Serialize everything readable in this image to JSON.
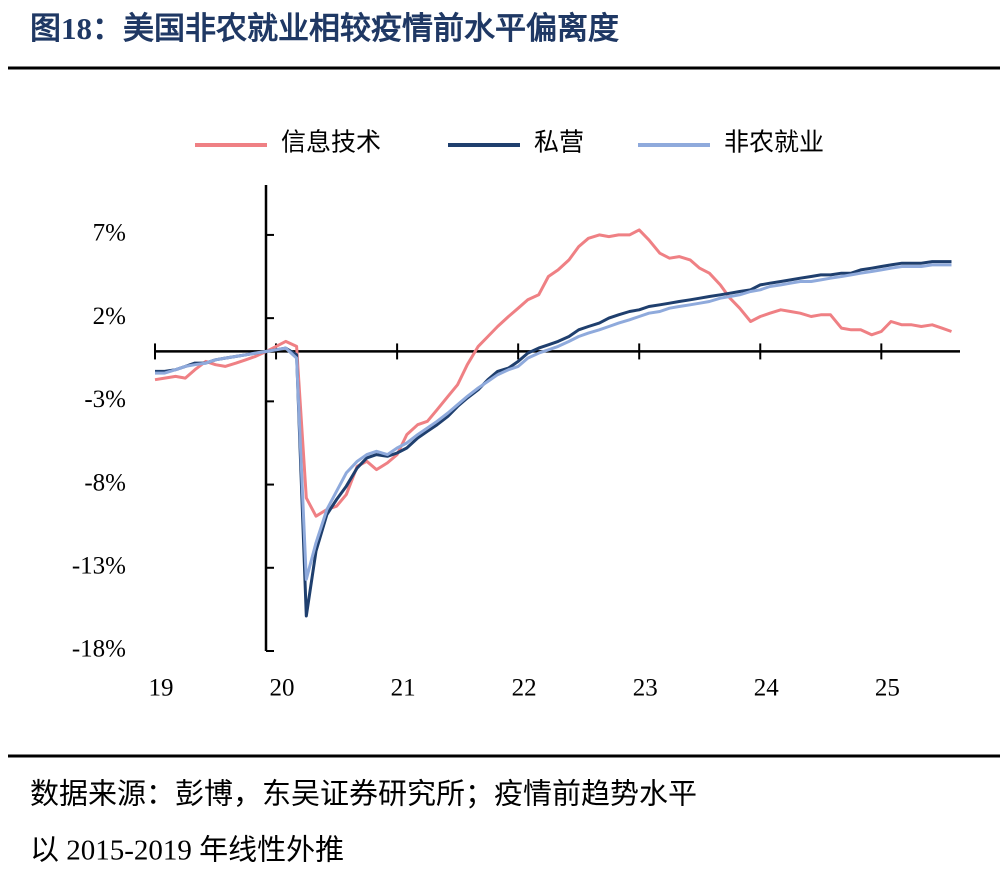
{
  "title": "图18：美国非农就业相较疫情前水平偏离度",
  "source": [
    "数据来源：彭博，东吴证券研究所；疫情前趋势水平",
    "以 2015-2019 年线性外推"
  ],
  "chart_data": {
    "type": "line",
    "x": [
      19.0,
      19.08,
      19.17,
      19.25,
      19.33,
      19.42,
      19.5,
      19.58,
      19.67,
      19.75,
      19.83,
      19.92,
      20.0,
      20.08,
      20.17,
      20.25,
      20.33,
      20.42,
      20.5,
      20.58,
      20.67,
      20.75,
      20.83,
      20.92,
      21.0,
      21.08,
      21.17,
      21.25,
      21.33,
      21.42,
      21.5,
      21.58,
      21.67,
      21.75,
      21.83,
      21.92,
      22.0,
      22.08,
      22.17,
      22.25,
      22.33,
      22.42,
      22.5,
      22.58,
      22.67,
      22.75,
      22.83,
      22.92,
      23.0,
      23.08,
      23.17,
      23.25,
      23.33,
      23.42,
      23.5,
      23.58,
      23.67,
      23.75,
      23.83,
      23.92,
      24.0,
      24.08,
      24.17,
      24.25,
      24.33,
      24.42,
      24.5,
      24.58,
      24.67,
      24.75,
      24.83,
      24.92,
      25.0,
      25.08,
      25.17,
      25.25,
      25.33,
      25.42,
      25.5,
      25.58
    ],
    "series": [
      {
        "name": "信息技术",
        "color": "#ef8084",
        "values": [
          -1.7,
          -1.6,
          -1.5,
          -1.6,
          -1.1,
          -0.6,
          -0.8,
          -0.9,
          -0.7,
          -0.5,
          -0.3,
          0,
          0.3,
          0.6,
          0.3,
          -8.8,
          -9.9,
          -9.5,
          -9.3,
          -8.6,
          -6.9,
          -6.6,
          -7.1,
          -6.7,
          -6.2,
          -5.0,
          -4.4,
          -4.2,
          -3.5,
          -2.7,
          -2.0,
          -0.8,
          0.3,
          0.9,
          1.5,
          2.1,
          2.6,
          3.1,
          3.4,
          4.5,
          4.9,
          5.5,
          6.3,
          6.8,
          7.0,
          6.9,
          7.0,
          7.0,
          7.3,
          6.7,
          5.9,
          5.6,
          5.7,
          5.5,
          5.0,
          4.7,
          4.0,
          3.2,
          2.6,
          1.8,
          2.1,
          2.3,
          2.5,
          2.4,
          2.3,
          2.1,
          2.2,
          2.2,
          1.4,
          1.3,
          1.3,
          1.0,
          1.2,
          1.8,
          1.6,
          1.6,
          1.5,
          1.6,
          1.4,
          1.2
        ]
      },
      {
        "name": "私营",
        "color": "#1f3f6e",
        "values": [
          -1.2,
          -1.2,
          -1.1,
          -0.9,
          -0.7,
          -0.7,
          -0.5,
          -0.4,
          -0.3,
          -0.2,
          -0.1,
          0,
          0.1,
          0.2,
          -0.2,
          -15.9,
          -12.0,
          -9.8,
          -8.9,
          -8.1,
          -7.0,
          -6.4,
          -6.2,
          -6.3,
          -6.1,
          -5.8,
          -5.2,
          -4.8,
          -4.4,
          -3.9,
          -3.3,
          -2.8,
          -2.3,
          -1.7,
          -1.2,
          -1.0,
          -0.6,
          -0.1,
          0.2,
          0.4,
          0.6,
          0.9,
          1.3,
          1.5,
          1.7,
          2.0,
          2.2,
          2.4,
          2.5,
          2.7,
          2.8,
          2.9,
          3.0,
          3.1,
          3.2,
          3.3,
          3.4,
          3.5,
          3.6,
          3.7,
          4.0,
          4.1,
          4.2,
          4.3,
          4.4,
          4.5,
          4.6,
          4.6,
          4.7,
          4.7,
          4.9,
          5.0,
          5.1,
          5.2,
          5.3,
          5.3,
          5.3,
          5.4,
          5.4,
          5.4
        ]
      },
      {
        "name": "非农就业",
        "color": "#8faadc",
        "values": [
          -1.3,
          -1.3,
          -1.1,
          -0.9,
          -0.8,
          -0.7,
          -0.5,
          -0.4,
          -0.3,
          -0.2,
          -0.1,
          0,
          0.1,
          0.2,
          -0.4,
          -13.7,
          -11.5,
          -9.5,
          -8.4,
          -7.3,
          -6.6,
          -6.2,
          -6.0,
          -6.2,
          -5.8,
          -5.5,
          -5.0,
          -4.6,
          -4.2,
          -3.7,
          -3.2,
          -2.7,
          -2.2,
          -1.8,
          -1.4,
          -1.1,
          -0.9,
          -0.4,
          -0.1,
          0.1,
          0.3,
          0.6,
          0.9,
          1.1,
          1.3,
          1.5,
          1.7,
          1.9,
          2.1,
          2.3,
          2.4,
          2.6,
          2.7,
          2.8,
          2.9,
          3.0,
          3.2,
          3.3,
          3.4,
          3.6,
          3.7,
          3.9,
          4.0,
          4.1,
          4.2,
          4.2,
          4.3,
          4.4,
          4.5,
          4.6,
          4.7,
          4.8,
          4.9,
          5.0,
          5.1,
          5.1,
          5.1,
          5.2,
          5.2,
          5.2
        ]
      }
    ],
    "xlim": [
      19,
      25.65
    ],
    "xticks": [
      19,
      20,
      21,
      22,
      23,
      24,
      25
    ],
    "ylim": [
      -18,
      10
    ],
    "yticks": [
      {
        "value": 7,
        "label": "7%"
      },
      {
        "value": 2,
        "label": "2%"
      },
      {
        "value": -3,
        "label": "-3%"
      },
      {
        "value": -8,
        "label": "-8%"
      },
      {
        "value": -13,
        "label": "-13%"
      },
      {
        "value": -18,
        "label": "-18%"
      }
    ],
    "legend": "top"
  }
}
